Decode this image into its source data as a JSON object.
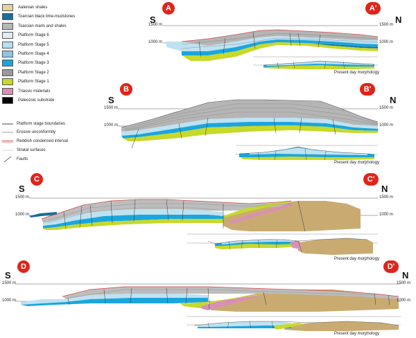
{
  "legend": {
    "fills": [
      {
        "label": "Aalenian shales",
        "color": "#e6d39a"
      },
      {
        "label": "Toarcian black lime-mudstones",
        "color": "#1a6e9a"
      },
      {
        "label": "Toarcian marls and shales",
        "color": "#b7b7b7"
      },
      {
        "label": "Platform Stage 6",
        "color": "#ddeef5"
      },
      {
        "label": "Platform Stage 5",
        "color": "#b9dff0"
      },
      {
        "label": "Platform Stage 4",
        "color": "#8fc5e3"
      },
      {
        "label": "Platform Stage 3",
        "color": "#1aa6dd"
      },
      {
        "label": "Platform Stage 2",
        "color": "#9a9a9a"
      },
      {
        "label": "Platform Stage 1",
        "color": "#c7d92a"
      },
      {
        "label": "Triassic materials",
        "color": "#d990b4"
      },
      {
        "label": "Paleozoic substrate",
        "color": "#000000"
      }
    ],
    "lines": [
      {
        "label": "Platform stage boundaries"
      },
      {
        "label": "Erosive unconformity"
      },
      {
        "label": "Reddish condensed interval"
      },
      {
        "label": "Stratal surfaces"
      },
      {
        "label": "Faults"
      }
    ]
  },
  "sections": [
    {
      "letter": "A",
      "prime": "A'",
      "south": "S",
      "north": "N",
      "elev_high": "1500 m",
      "elev_low": "1000 m",
      "caption": "Present day morphology"
    },
    {
      "letter": "B",
      "prime": "B'",
      "south": "S",
      "north": "N",
      "elev_high": "1500 m",
      "elev_low": "1000 m",
      "caption": "Present day morphology"
    },
    {
      "letter": "C",
      "prime": "C'",
      "south": "S",
      "north": "N",
      "elev_high": "1500 m",
      "elev_low": "1000 m",
      "caption": "Present day morphology"
    },
    {
      "letter": "D",
      "prime": "D'",
      "south": "S",
      "north": "N",
      "elev_high": "1500 m",
      "elev_low": "1000 m",
      "caption": "Present day morphology"
    }
  ]
}
